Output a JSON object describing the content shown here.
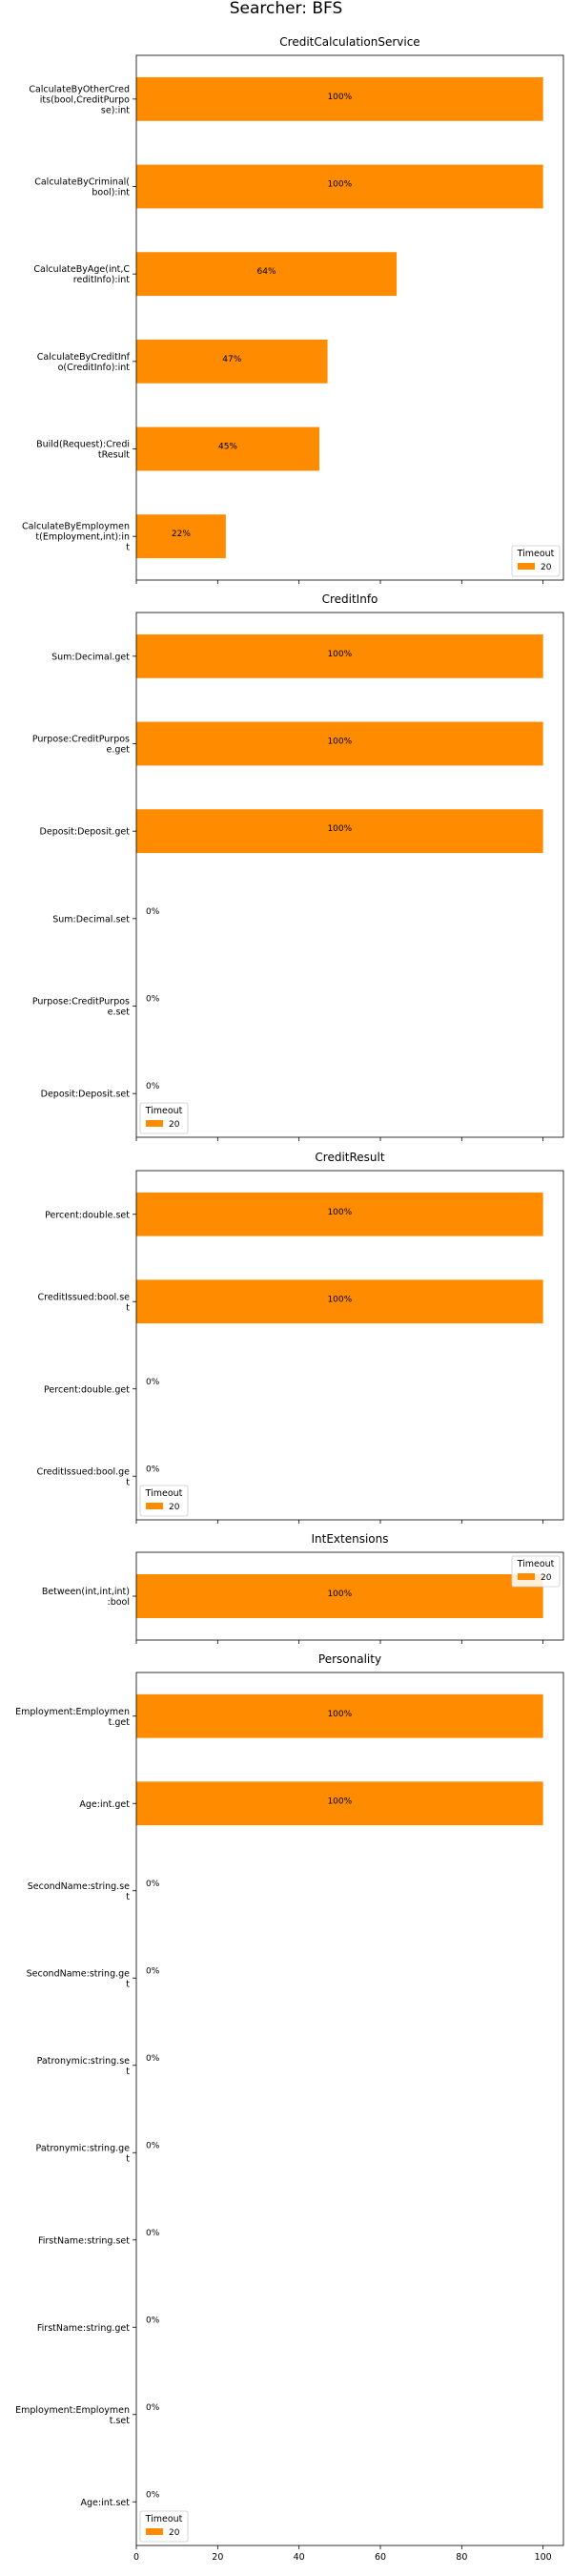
{
  "figure": {
    "title": "Searcher: BFS"
  },
  "chart_data": [
    {
      "type": "bar",
      "orientation": "horizontal",
      "title": "CreditCalculationService",
      "categories": [
        "CalculateByOtherCred|its(bool,CreditPurpo|se):int",
        "CalculateByCriminal(|bool):int",
        "CalculateByAge(int,C|reditInfo):int",
        "CalculateByCreditInf|o(CreditInfo):int",
        "Build(Request):Credi|tResult",
        "CalculateByEmploymen|t(Employment,int):in|t"
      ],
      "values": [
        100,
        100,
        64,
        47,
        45,
        22
      ],
      "data_labels": [
        "100%",
        "100%",
        "64%",
        "47%",
        "45%",
        "22%"
      ],
      "xlim": [
        0,
        105
      ],
      "xticks": [
        0,
        20,
        40,
        60,
        80,
        100
      ],
      "show_xtick_labels": false,
      "legend": {
        "title": "Timeout",
        "entries": [
          "20"
        ],
        "position": "lower-right"
      },
      "color": "#ff8c00"
    },
    {
      "type": "bar",
      "orientation": "horizontal",
      "title": "CreditInfo",
      "categories": [
        "Sum:Decimal.get",
        "Purpose:CreditPurpos|e.get",
        "Deposit:Deposit.get",
        "Sum:Decimal.set",
        "Purpose:CreditPurpos|e.set",
        "Deposit:Deposit.set"
      ],
      "values": [
        100,
        100,
        100,
        0,
        0,
        0
      ],
      "data_labels": [
        "100%",
        "100%",
        "100%",
        "0%",
        "0%",
        "0%"
      ],
      "xlim": [
        0,
        105
      ],
      "xticks": [
        0,
        20,
        40,
        60,
        80,
        100
      ],
      "show_xtick_labels": false,
      "legend": {
        "title": "Timeout",
        "entries": [
          "20"
        ],
        "position": "lower-left"
      },
      "color": "#ff8c00"
    },
    {
      "type": "bar",
      "orientation": "horizontal",
      "title": "CreditResult",
      "categories": [
        "Percent:double.set",
        "CreditIssued:bool.se|t",
        "Percent:double.get",
        "CreditIssued:bool.ge|t"
      ],
      "values": [
        100,
        100,
        0,
        0
      ],
      "data_labels": [
        "100%",
        "100%",
        "0%",
        "0%"
      ],
      "xlim": [
        0,
        105
      ],
      "xticks": [
        0,
        20,
        40,
        60,
        80,
        100
      ],
      "show_xtick_labels": false,
      "legend": {
        "title": "Timeout",
        "entries": [
          "20"
        ],
        "position": "lower-left"
      },
      "color": "#ff8c00"
    },
    {
      "type": "bar",
      "orientation": "horizontal",
      "title": "IntExtensions",
      "categories": [
        "Between(int,int,int)|:bool"
      ],
      "values": [
        100
      ],
      "data_labels": [
        "100%"
      ],
      "xlim": [
        0,
        105
      ],
      "xticks": [
        0,
        20,
        40,
        60,
        80,
        100
      ],
      "show_xtick_labels": false,
      "legend": {
        "title": "Timeout",
        "entries": [
          "20"
        ],
        "position": "upper-right"
      },
      "color": "#ff8c00"
    },
    {
      "type": "bar",
      "orientation": "horizontal",
      "title": "Personality",
      "categories": [
        "Employment:Employmen|t.get",
        "Age:int.get",
        "SecondName:string.se|t",
        "SecondName:string.ge|t",
        "Patronymic:string.se|t",
        "Patronymic:string.ge|t",
        "FirstName:string.set",
        "FirstName:string.get",
        "Employment:Employmen|t.set",
        "Age:int.set"
      ],
      "values": [
        100,
        100,
        0,
        0,
        0,
        0,
        0,
        0,
        0,
        0
      ],
      "data_labels": [
        "100%",
        "100%",
        "0%",
        "0%",
        "0%",
        "0%",
        "0%",
        "0%",
        "0%",
        "0%"
      ],
      "xlim": [
        0,
        105
      ],
      "xticks": [
        0,
        20,
        40,
        60,
        80,
        100
      ],
      "show_xtick_labels": true,
      "legend": {
        "title": "Timeout",
        "entries": [
          "20"
        ],
        "position": "lower-left"
      },
      "color": "#ff8c00"
    }
  ]
}
